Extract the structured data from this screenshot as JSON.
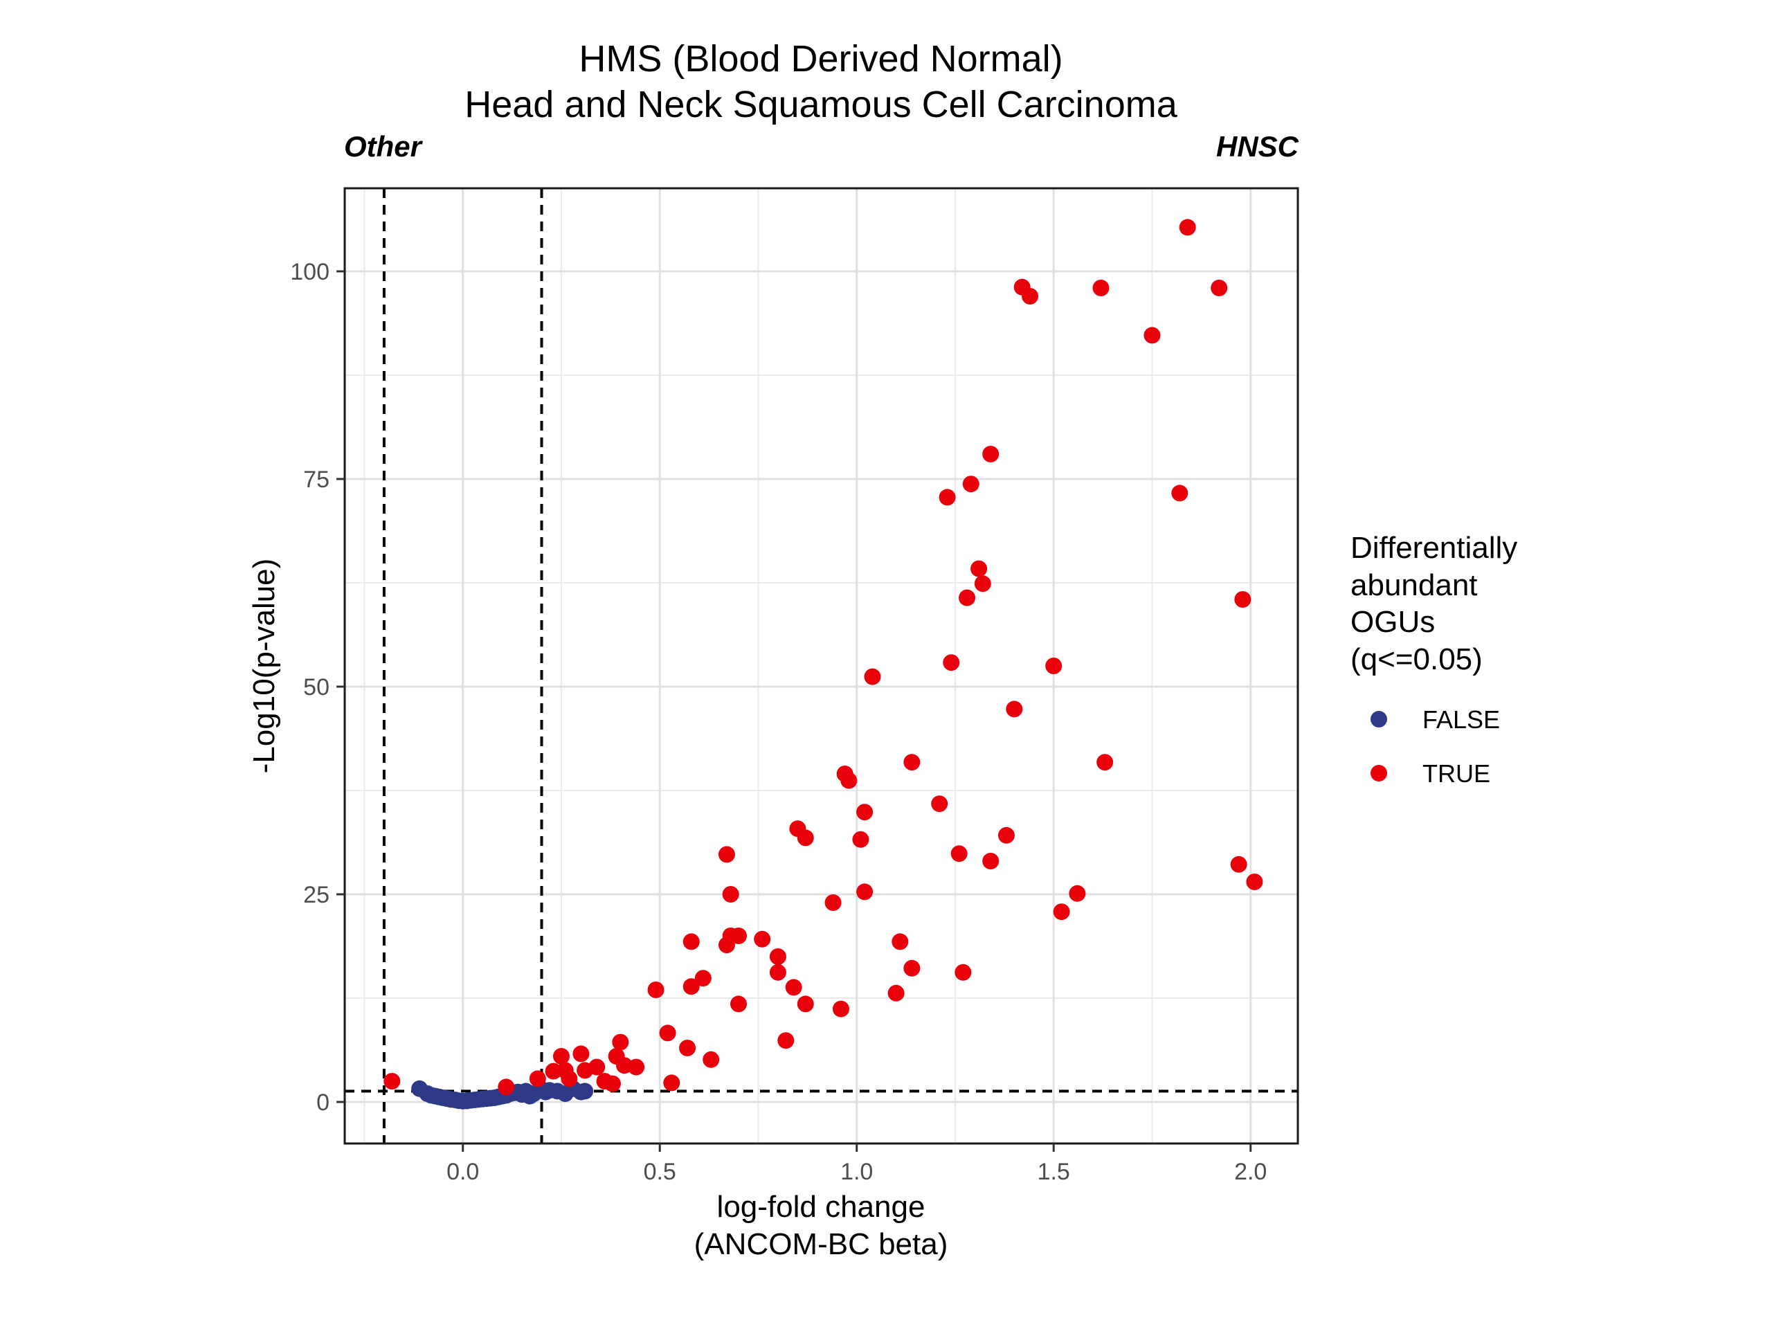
{
  "chart_data": {
    "type": "scatter",
    "title": [
      "HMS (Blood Derived Normal)",
      "Head and Neck Squamous Cell Carcinoma"
    ],
    "corner_labels": {
      "left": "Other",
      "right": "HNSC"
    },
    "xlabel": [
      "log-fold change",
      "(ANCOM-BC beta)"
    ],
    "ylabel": "-Log10(p-value)",
    "xlim": [
      -0.3,
      2.12
    ],
    "ylim": [
      -5,
      110
    ],
    "xticks": [
      0.0,
      0.5,
      1.0,
      1.5,
      2.0
    ],
    "xtick_labels": [
      "0.0",
      "0.5",
      "1.0",
      "1.5",
      "2.0"
    ],
    "yticks": [
      0,
      25,
      50,
      75,
      100
    ],
    "ytick_labels": [
      "0",
      "25",
      "50",
      "75",
      "100"
    ],
    "grid": true,
    "reference_lines": {
      "vertical": [
        -0.2,
        0.2
      ],
      "horizontal": [
        1.3
      ]
    },
    "legend": {
      "title": [
        "Differentially",
        "abundant",
        "OGUs",
        "(q<=0.05)"
      ],
      "position": "right",
      "entries": [
        {
          "label": "FALSE",
          "color": "#2e3a87"
        },
        {
          "label": "TRUE",
          "color": "#e8000b"
        }
      ]
    },
    "series": [
      {
        "name": "FALSE",
        "color": "#2e3a87",
        "points": [
          [
            -0.11,
            1.6
          ],
          [
            -0.09,
            1.0
          ],
          [
            -0.08,
            0.8
          ],
          [
            -0.07,
            0.7
          ],
          [
            -0.06,
            0.6
          ],
          [
            -0.05,
            0.5
          ],
          [
            -0.04,
            0.4
          ],
          [
            -0.03,
            0.3
          ],
          [
            -0.02,
            0.25
          ],
          [
            -0.01,
            0.15
          ],
          [
            0.0,
            0.1
          ],
          [
            0.01,
            0.12
          ],
          [
            0.02,
            0.2
          ],
          [
            0.03,
            0.25
          ],
          [
            0.04,
            0.3
          ],
          [
            0.05,
            0.35
          ],
          [
            0.06,
            0.4
          ],
          [
            0.07,
            0.45
          ],
          [
            0.08,
            0.5
          ],
          [
            0.09,
            0.6
          ],
          [
            0.1,
            0.7
          ],
          [
            0.11,
            0.8
          ],
          [
            0.12,
            1.0
          ],
          [
            0.13,
            1.1
          ],
          [
            0.14,
            1.2
          ],
          [
            0.15,
            0.9
          ],
          [
            0.16,
            1.3
          ],
          [
            0.17,
            0.7
          ],
          [
            0.18,
            1.0
          ],
          [
            0.2,
            1.5
          ],
          [
            0.21,
            1.2
          ],
          [
            0.22,
            1.4
          ],
          [
            0.24,
            1.3
          ],
          [
            0.26,
            1.0
          ],
          [
            0.28,
            1.6
          ],
          [
            0.3,
            1.2
          ],
          [
            0.31,
            1.3
          ]
        ]
      },
      {
        "name": "TRUE",
        "color": "#e8000b",
        "points": [
          [
            -0.18,
            2.5
          ],
          [
            0.11,
            1.8
          ],
          [
            0.19,
            2.8
          ],
          [
            0.23,
            3.7
          ],
          [
            0.25,
            5.5
          ],
          [
            0.26,
            3.8
          ],
          [
            0.27,
            2.8
          ],
          [
            0.3,
            5.8
          ],
          [
            0.31,
            3.8
          ],
          [
            0.34,
            4.2
          ],
          [
            0.36,
            2.5
          ],
          [
            0.38,
            2.2
          ],
          [
            0.39,
            5.5
          ],
          [
            0.4,
            7.2
          ],
          [
            0.41,
            4.4
          ],
          [
            0.44,
            4.2
          ],
          [
            0.49,
            13.5
          ],
          [
            0.52,
            8.3
          ],
          [
            0.53,
            2.3
          ],
          [
            0.57,
            6.5
          ],
          [
            0.58,
            19.3
          ],
          [
            0.58,
            13.9
          ],
          [
            0.61,
            14.9
          ],
          [
            0.63,
            5.1
          ],
          [
            0.67,
            29.8
          ],
          [
            0.67,
            18.9
          ],
          [
            0.68,
            25.0
          ],
          [
            0.68,
            20.0
          ],
          [
            0.7,
            20.0
          ],
          [
            0.7,
            11.8
          ],
          [
            0.76,
            19.6
          ],
          [
            0.8,
            17.5
          ],
          [
            0.8,
            15.6
          ],
          [
            0.82,
            7.4
          ],
          [
            0.84,
            13.8
          ],
          [
            0.85,
            32.9
          ],
          [
            0.87,
            31.8
          ],
          [
            0.87,
            11.8
          ],
          [
            0.94,
            24.0
          ],
          [
            0.96,
            11.2
          ],
          [
            0.97,
            39.5
          ],
          [
            0.98,
            38.7
          ],
          [
            1.01,
            31.6
          ],
          [
            1.02,
            34.9
          ],
          [
            1.02,
            25.3
          ],
          [
            1.04,
            51.2
          ],
          [
            1.1,
            13.1
          ],
          [
            1.11,
            19.3
          ],
          [
            1.14,
            40.9
          ],
          [
            1.14,
            16.1
          ],
          [
            1.21,
            35.9
          ],
          [
            1.23,
            72.8
          ],
          [
            1.24,
            52.9
          ],
          [
            1.26,
            29.9
          ],
          [
            1.27,
            15.6
          ],
          [
            1.28,
            60.7
          ],
          [
            1.29,
            74.4
          ],
          [
            1.31,
            64.2
          ],
          [
            1.32,
            62.4
          ],
          [
            1.34,
            78.0
          ],
          [
            1.34,
            29.0
          ],
          [
            1.38,
            32.1
          ],
          [
            1.4,
            47.3
          ],
          [
            1.42,
            98.1
          ],
          [
            1.44,
            97.0
          ],
          [
            1.5,
            52.5
          ],
          [
            1.52,
            22.9
          ],
          [
            1.56,
            25.1
          ],
          [
            1.62,
            98.0
          ],
          [
            1.63,
            40.9
          ],
          [
            1.75,
            92.3
          ],
          [
            1.82,
            73.3
          ],
          [
            1.84,
            105.3
          ],
          [
            1.92,
            98.0
          ],
          [
            1.97,
            28.6
          ],
          [
            1.98,
            60.5
          ],
          [
            2.01,
            26.5
          ]
        ]
      }
    ]
  }
}
